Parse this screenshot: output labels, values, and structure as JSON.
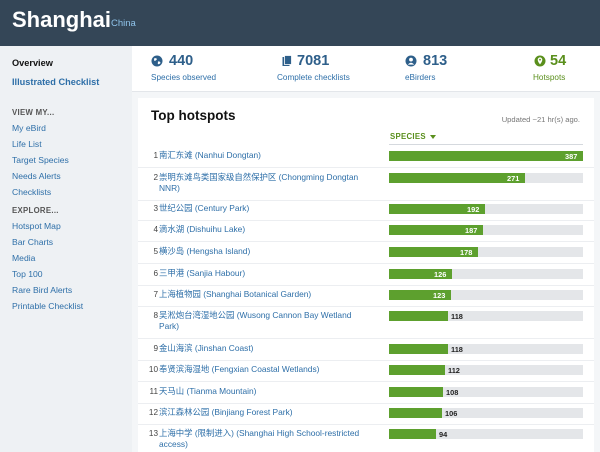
{
  "header": {
    "title": "Shanghai",
    "subtitle": "China"
  },
  "sidebar": {
    "overview": "Overview",
    "checklist": "Illustrated Checklist",
    "view_head": "VIEW MY...",
    "view_items": [
      "My eBird",
      "Life List",
      "Target Species",
      "Needs Alerts",
      "Checklists"
    ],
    "explore_head": "EXPLORE...",
    "explore_items": [
      "Hotspot Map",
      "Bar Charts",
      "Media",
      "Top 100",
      "Rare Bird Alerts",
      "Printable Checklist"
    ]
  },
  "stats": [
    {
      "value": "440",
      "label": "Species observed",
      "icon": "globe-icon"
    },
    {
      "value": "7081",
      "label": "Complete checklists",
      "icon": "checklist-icon"
    },
    {
      "value": "813",
      "label": "eBirders",
      "icon": "user-icon"
    },
    {
      "value": "54",
      "label": "Hotspots",
      "icon": "location-pin-icon"
    }
  ],
  "hotspots": {
    "title": "Top hotspots",
    "updated": "Updated ~21 hr(s) ago.",
    "sort_label": "SPECIES",
    "max": 387,
    "rows": [
      {
        "rank": "1",
        "name": "南汇东滩 (Nanhui Dongtan)",
        "species": 387
      },
      {
        "rank": "2",
        "name": "崇明东滩鸟类国家级自然保护区 (Chongming Dongtan NNR)",
        "species": 271
      },
      {
        "rank": "3",
        "name": "世纪公园 (Century Park)",
        "species": 192
      },
      {
        "rank": "4",
        "name": "滴水湖 (Dishuihu Lake)",
        "species": 187
      },
      {
        "rank": "5",
        "name": "横沙岛 (Hengsha Island)",
        "species": 178
      },
      {
        "rank": "6",
        "name": "三甲港 (Sanjia Habour)",
        "species": 126
      },
      {
        "rank": "7",
        "name": "上海植物园 (Shanghai Botanical Garden)",
        "species": 123
      },
      {
        "rank": "8",
        "name": "吴淞炮台湾湿地公园 (Wusong Cannon Bay Wetland Park)",
        "species": 118
      },
      {
        "rank": "9",
        "name": "金山海滨 (Jinshan Coast)",
        "species": 118
      },
      {
        "rank": "10",
        "name": "奉贤滨海湿地 (Fengxian Coastal Wetlands)",
        "species": 112
      },
      {
        "rank": "11",
        "name": "天马山 (Tianma Mountain)",
        "species": 108
      },
      {
        "rank": "12",
        "name": "滨江森林公园 (Binjiang Forest Park)",
        "species": 106
      },
      {
        "rank": "13",
        "name": "上海中学 (限制进入) (Shanghai High School-restricted access)",
        "species": 94
      }
    ]
  },
  "colors": {
    "header_bg": "#344657",
    "bar": "#5da02e",
    "link": "#2e6fa8",
    "accent_green": "#5a8f1c"
  }
}
